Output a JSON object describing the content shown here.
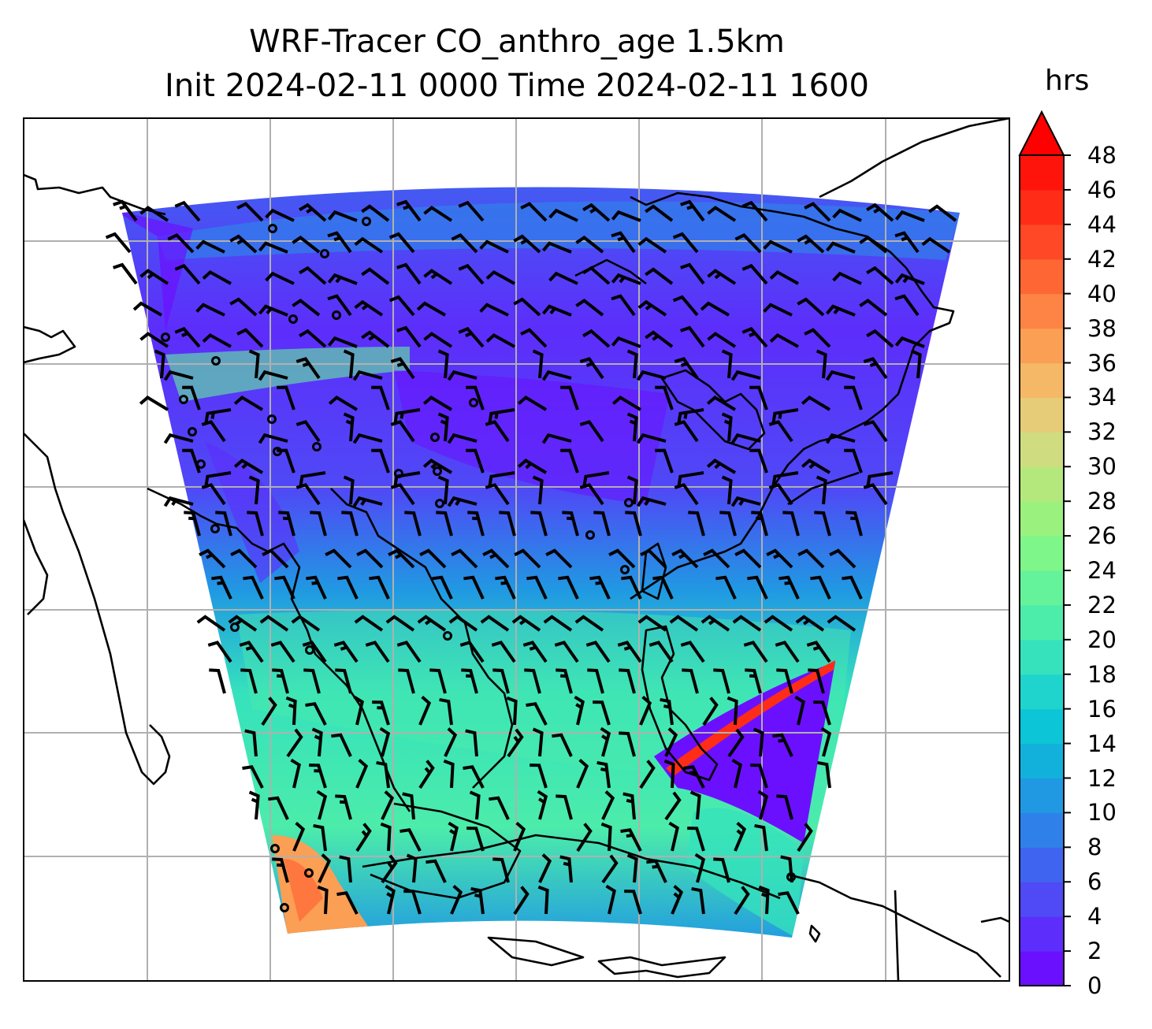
{
  "figure": {
    "title_line1": "WRF-Tracer CO_anthro_age 1.5km",
    "title_line2": "Init 2024-02-11 0000 Time 2024-02-11 1600"
  },
  "colorbar": {
    "unit": "hrs",
    "ticks": [
      "0",
      "2",
      "4",
      "6",
      "8",
      "10",
      "12",
      "14",
      "16",
      "18",
      "20",
      "22",
      "24",
      "26",
      "28",
      "30",
      "32",
      "34",
      "36",
      "38",
      "40",
      "42",
      "44",
      "46",
      "48"
    ],
    "extend": "max",
    "colors": [
      "#6b10ff",
      "#5d2dfb",
      "#4f49f6",
      "#3f64f0",
      "#3080ea",
      "#2099e2",
      "#11b1db",
      "#0cc5d6",
      "#1fd4cc",
      "#35e2bc",
      "#4cecaa",
      "#64f29a",
      "#7ff68a",
      "#9af17e",
      "#b5e87c",
      "#cfdc80",
      "#e6cc78",
      "#f4b866",
      "#fb9f54",
      "#fd8444",
      "#fe6634",
      "#ff4826",
      "#ff2c18",
      "#ff140c",
      "#ff0000"
    ]
  },
  "map": {
    "field": "CO_anthro_age",
    "level": "1.5km",
    "gridlines": true,
    "overlay": "wind barbs",
    "features": [
      "coastlines",
      "country borders"
    ]
  }
}
